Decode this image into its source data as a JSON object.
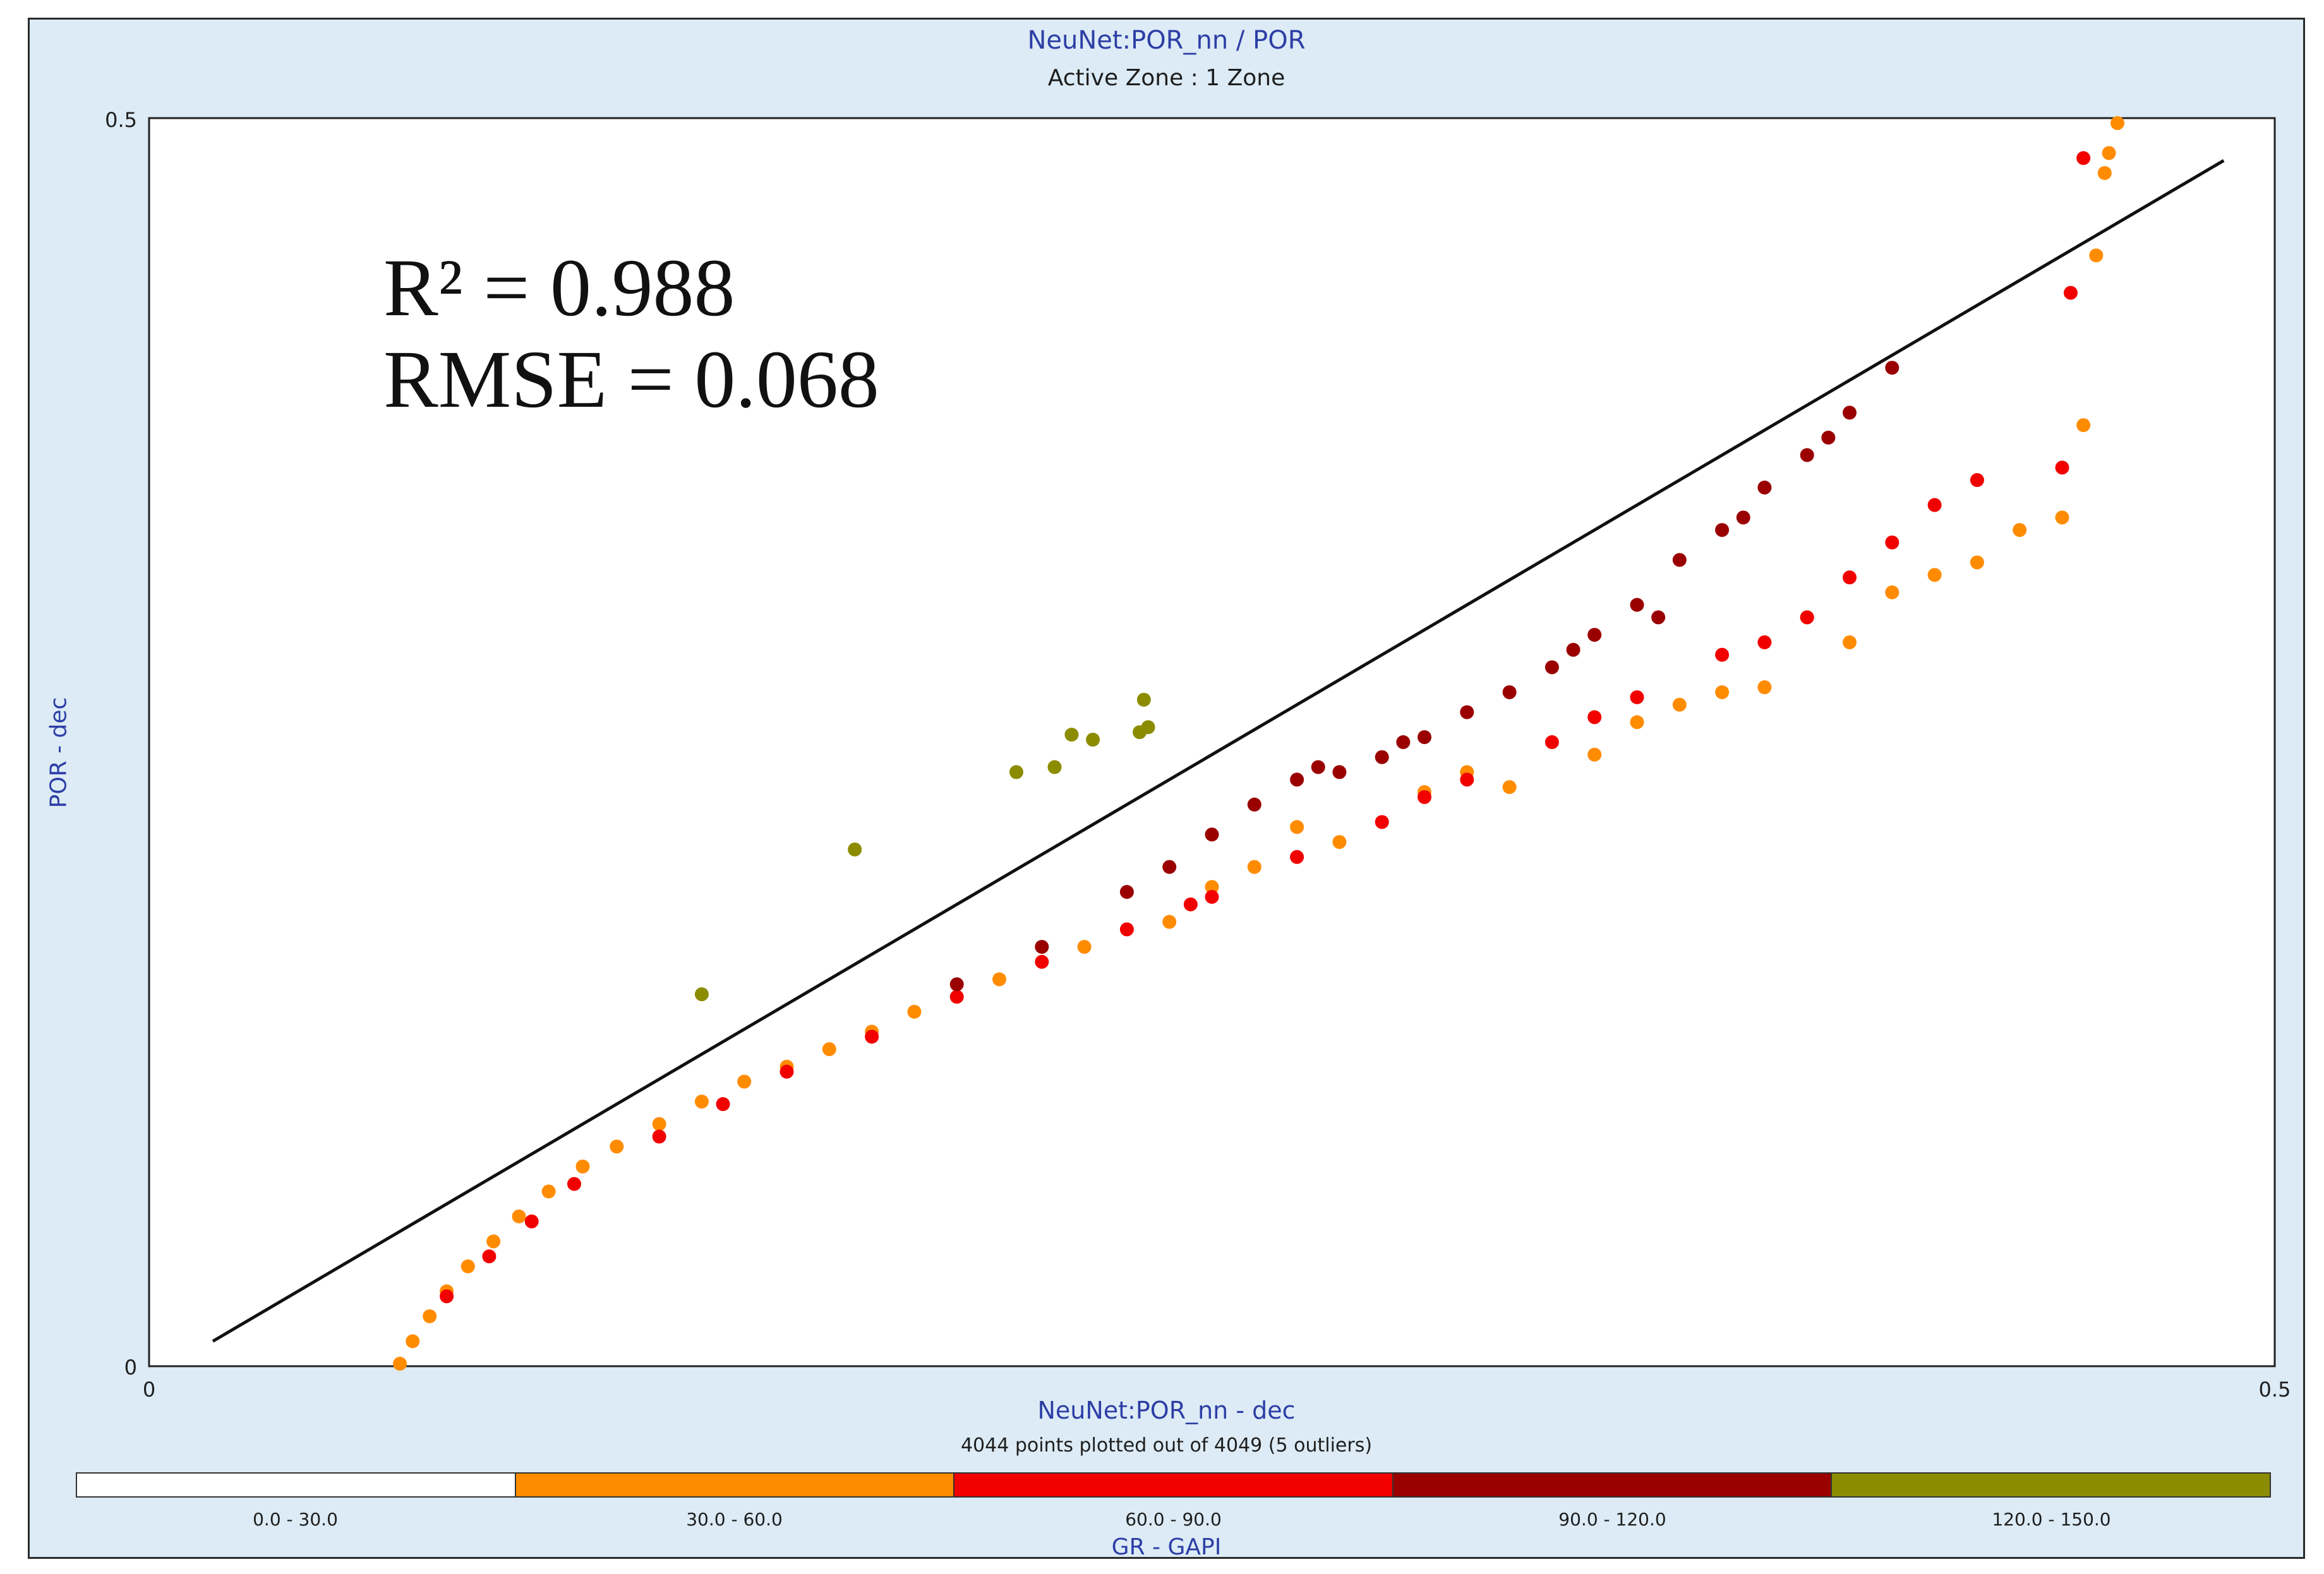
{
  "chart_data": {
    "type": "scatter",
    "title": "NeuNet:POR_nn / POR",
    "subtitle": "Active Zone : 1  Zone",
    "xlabel": "NeuNet:POR_nn - dec",
    "ylabel": "POR - dec",
    "xlim": [
      0,
      0.5
    ],
    "ylim": [
      0,
      0.5
    ],
    "x_tick_labels": [
      "0",
      "0.5"
    ],
    "y_tick_labels": [
      "0",
      "0.5"
    ],
    "grid": false,
    "annotations": [
      "R² = 0.988",
      "RMSE = 0.068"
    ],
    "footnote": "4044 points plotted out of 4049 (5 outliers)",
    "trend_line": {
      "x": [
        0.015,
        0.488
      ],
      "y": [
        0.01,
        0.483
      ]
    },
    "colorbar": {
      "label": "GR - GAPI",
      "classes": [
        {
          "label": "0.0 - 30.0",
          "color": "#ffffff"
        },
        {
          "label": "30.0 - 60.0",
          "color": "#ff8c00"
        },
        {
          "label": "60.0 - 90.0",
          "color": "#f20000"
        },
        {
          "label": "90.0 - 120.0",
          "color": "#9b0000"
        },
        {
          "label": "120.0 - 150.0",
          "color": "#8c8c00"
        }
      ]
    },
    "series": [
      {
        "class": "30.0 - 60.0",
        "color": "#ff8c00",
        "points": [
          [
            0.059,
            0.001
          ],
          [
            0.062,
            0.01
          ],
          [
            0.066,
            0.02
          ],
          [
            0.07,
            0.03
          ],
          [
            0.075,
            0.04
          ],
          [
            0.081,
            0.05
          ],
          [
            0.087,
            0.06
          ],
          [
            0.094,
            0.07
          ],
          [
            0.102,
            0.08
          ],
          [
            0.11,
            0.088
          ],
          [
            0.12,
            0.097
          ],
          [
            0.13,
            0.106
          ],
          [
            0.14,
            0.114
          ],
          [
            0.15,
            0.12
          ],
          [
            0.16,
            0.127
          ],
          [
            0.17,
            0.134
          ],
          [
            0.18,
            0.142
          ],
          [
            0.2,
            0.155
          ],
          [
            0.22,
            0.168
          ],
          [
            0.24,
            0.178
          ],
          [
            0.26,
            0.2
          ],
          [
            0.28,
            0.21
          ],
          [
            0.3,
            0.23
          ],
          [
            0.32,
            0.232
          ],
          [
            0.34,
            0.245
          ],
          [
            0.36,
            0.265
          ],
          [
            0.38,
            0.272
          ],
          [
            0.4,
            0.29
          ],
          [
            0.42,
            0.317
          ],
          [
            0.44,
            0.335
          ],
          [
            0.45,
            0.34
          ],
          [
            0.455,
            0.377
          ],
          [
            0.458,
            0.445
          ],
          [
            0.46,
            0.478
          ],
          [
            0.461,
            0.486
          ],
          [
            0.463,
            0.498
          ],
          [
            0.25,
            0.192
          ],
          [
            0.27,
            0.216
          ],
          [
            0.31,
            0.238
          ],
          [
            0.35,
            0.258
          ],
          [
            0.37,
            0.27
          ],
          [
            0.39,
            0.3
          ],
          [
            0.43,
            0.322
          ],
          [
            0.41,
            0.31
          ]
        ]
      },
      {
        "class": "60.0 - 90.0",
        "color": "#f20000",
        "points": [
          [
            0.07,
            0.028
          ],
          [
            0.08,
            0.044
          ],
          [
            0.09,
            0.058
          ],
          [
            0.1,
            0.073
          ],
          [
            0.12,
            0.092
          ],
          [
            0.135,
            0.105
          ],
          [
            0.15,
            0.118
          ],
          [
            0.17,
            0.132
          ],
          [
            0.19,
            0.148
          ],
          [
            0.21,
            0.162
          ],
          [
            0.23,
            0.175
          ],
          [
            0.25,
            0.188
          ],
          [
            0.27,
            0.204
          ],
          [
            0.29,
            0.218
          ],
          [
            0.31,
            0.235
          ],
          [
            0.33,
            0.25
          ],
          [
            0.35,
            0.268
          ],
          [
            0.37,
            0.285
          ],
          [
            0.39,
            0.3
          ],
          [
            0.41,
            0.33
          ],
          [
            0.43,
            0.355
          ],
          [
            0.45,
            0.36
          ],
          [
            0.452,
            0.43
          ],
          [
            0.455,
            0.484
          ],
          [
            0.245,
            0.185
          ],
          [
            0.3,
            0.228
          ],
          [
            0.34,
            0.26
          ],
          [
            0.38,
            0.29
          ],
          [
            0.42,
            0.345
          ],
          [
            0.4,
            0.316
          ]
        ]
      },
      {
        "class": "90.0 - 120.0",
        "color": "#9b0000",
        "points": [
          [
            0.19,
            0.153
          ],
          [
            0.21,
            0.168
          ],
          [
            0.23,
            0.19
          ],
          [
            0.24,
            0.2
          ],
          [
            0.25,
            0.213
          ],
          [
            0.26,
            0.225
          ],
          [
            0.27,
            0.235
          ],
          [
            0.28,
            0.238
          ],
          [
            0.29,
            0.244
          ],
          [
            0.3,
            0.252
          ],
          [
            0.31,
            0.262
          ],
          [
            0.32,
            0.27
          ],
          [
            0.33,
            0.28
          ],
          [
            0.34,
            0.293
          ],
          [
            0.35,
            0.305
          ],
          [
            0.36,
            0.323
          ],
          [
            0.37,
            0.335
          ],
          [
            0.38,
            0.352
          ],
          [
            0.39,
            0.365
          ],
          [
            0.4,
            0.382
          ],
          [
            0.41,
            0.4
          ],
          [
            0.275,
            0.24
          ],
          [
            0.295,
            0.25
          ],
          [
            0.335,
            0.287
          ],
          [
            0.355,
            0.3
          ],
          [
            0.375,
            0.34
          ],
          [
            0.395,
            0.372
          ]
        ]
      },
      {
        "class": "120.0 - 150.0",
        "color": "#8c8c00",
        "points": [
          [
            0.13,
            0.149
          ],
          [
            0.166,
            0.207
          ],
          [
            0.204,
            0.238
          ],
          [
            0.213,
            0.24
          ],
          [
            0.217,
            0.253
          ],
          [
            0.222,
            0.251
          ],
          [
            0.233,
            0.254
          ],
          [
            0.234,
            0.267
          ],
          [
            0.235,
            0.256
          ]
        ]
      }
    ]
  }
}
